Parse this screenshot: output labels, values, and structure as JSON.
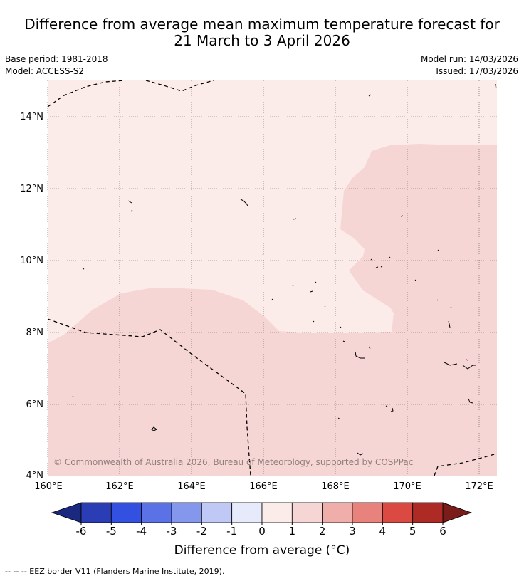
{
  "title": {
    "line1": "Difference from average mean maximum temperature forecast for",
    "line2": "21 March to 3 April 2026"
  },
  "meta": {
    "base_period": "Base period: 1981-2018",
    "model": "Model: ACCESS-S2",
    "model_run": "Model run: 14/03/2026",
    "issued": "Issued: 17/03/2026"
  },
  "map": {
    "lat_labels": [
      "14°N",
      "12°N",
      "10°N",
      "8°N",
      "6°N",
      "4°N"
    ],
    "lon_labels": [
      "160°E",
      "162°E",
      "164°E",
      "166°E",
      "168°E",
      "170°E",
      "172°E"
    ],
    "copyright": "© Commonwealth of Australia 2026, Bureau of Meteorology, supported by COSPPac",
    "region_colors": {
      "bin_0_to_1": "#fbecea",
      "bin_1_to_2": "#f5d6d4"
    }
  },
  "colorbar": {
    "ticks": [
      "-6",
      "-5",
      "-4",
      "-3",
      "-2",
      "-1",
      "0",
      "1",
      "2",
      "3",
      "4",
      "5",
      "6"
    ],
    "colors": [
      "#2a3db5",
      "#3350e0",
      "#5a72e6",
      "#8596ed",
      "#c0c8f5",
      "#e6eafb",
      "#fbecea",
      "#f5d6d4",
      "#efaeaa",
      "#e7827c",
      "#da4a42",
      "#ae2a24"
    ],
    "low_extend_color": "#1a2880",
    "high_extend_color": "#7a1c1a",
    "label": "Difference from average (°C)"
  },
  "footer": "--  --  -- EEZ border V11 (Flanders Marine Institute, 2019)."
}
